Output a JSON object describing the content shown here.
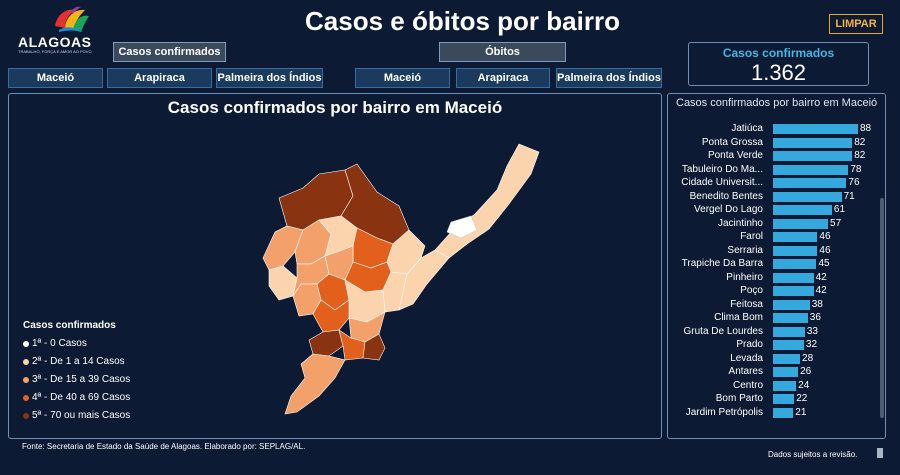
{
  "logo": {
    "text": "ALAGOAS",
    "tagline": "TRABALHO, FORÇA E AMOR AO POVO"
  },
  "title": "Casos e óbitos por bairro",
  "clear_button": "LIMPAR",
  "groups": {
    "confirmados": {
      "label": "Casos confirmados",
      "cities": [
        "Maceió",
        "Arapiraca",
        "Palmeira dos Índios"
      ]
    },
    "obitos": {
      "label": "Óbitos",
      "cities": [
        "Maceió",
        "Arapiraca",
        "Palmeira dos Índios"
      ]
    }
  },
  "kpi": {
    "label": "Casos confirmados",
    "value": "1.362"
  },
  "map": {
    "title": "Casos confirmados por bairro em Maceió",
    "legend_title": "Casos confirmados",
    "legend": [
      {
        "label": "1ª - 0 Casos",
        "color": "#ffffff"
      },
      {
        "label": "2ª - De 1 a 14 Casos",
        "color": "#fbd3ad"
      },
      {
        "label": "3ª - De 15 a 39 Casos",
        "color": "#f4a06a"
      },
      {
        "label": "4ª - De 40 a 69 Casos",
        "color": "#e35f1c"
      },
      {
        "label": "5ª - 70 ou mais Casos",
        "color": "#8a3311"
      }
    ]
  },
  "chart_data": {
    "type": "bar",
    "title": "Casos confirmados por bairro em Maceió",
    "orientation": "horizontal",
    "categories": [
      "Jatiúca",
      "Ponta Grossa",
      "Ponta Verde",
      "Tabuleiro Do Ma...",
      "Cidade Universit...",
      "Benedito Bentes",
      "Vergel Do Lago",
      "Jacintinho",
      "Farol",
      "Serraria",
      "Trapiche Da Barra",
      "Pinheiro",
      "Poço",
      "Feitosa",
      "Clima Bom",
      "Gruta De Lourdes",
      "Prado",
      "Levada",
      "Antares",
      "Centro",
      "Bom Parto",
      "Jardim Petrópolis"
    ],
    "values": [
      88,
      82,
      82,
      78,
      76,
      71,
      61,
      57,
      46,
      46,
      45,
      42,
      42,
      38,
      36,
      33,
      32,
      28,
      26,
      24,
      22,
      21
    ],
    "bar_color": "#35a8dd"
  },
  "footer": {
    "source": "Fonte: Secretaria de Estado da Saúde de Alagoas. Elaborado por: SEPLAG/AL.",
    "notice": "Dados sujeitos a revisão."
  }
}
